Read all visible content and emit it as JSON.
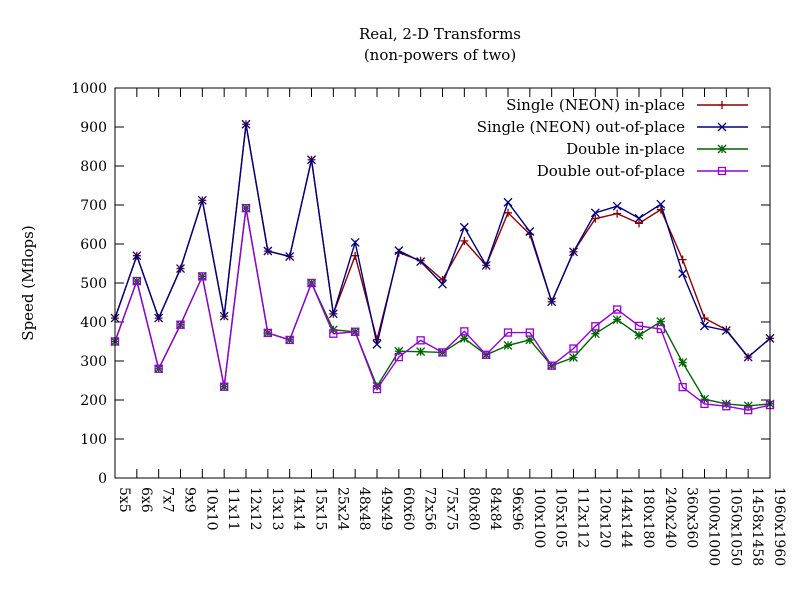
{
  "chart_data": {
    "type": "line",
    "title": "Real, 2-D Transforms",
    "subtitle": "(non-powers of two)",
    "xlabel": "",
    "ylabel": "Speed (Mflops)",
    "ylim": [
      0,
      1000
    ],
    "yticks": [
      0,
      100,
      200,
      300,
      400,
      500,
      600,
      700,
      800,
      900,
      1000
    ],
    "grid": false,
    "legend_position": "top-right",
    "categories": [
      "5x5",
      "6x6",
      "7x7",
      "9x9",
      "10x10",
      "11x11",
      "12x12",
      "13x13",
      "14x14",
      "15x15",
      "25x24",
      "48x48",
      "49x49",
      "60x60",
      "72x56",
      "75x75",
      "80x80",
      "84x84",
      "96x96",
      "100x100",
      "105x105",
      "112x112",
      "120x120",
      "144x144",
      "180x180",
      "240x240",
      "360x360",
      "1000x1000",
      "1050x1050",
      "1458x1458",
      "1960x1960"
    ],
    "series": [
      {
        "name": "Single (NEON) in-place",
        "color": "#8b0000",
        "marker": "plus",
        "values": [
          410,
          570,
          410,
          537,
          712,
          415,
          907,
          582,
          568,
          816,
          421,
          570,
          355,
          578,
          557,
          508,
          608,
          545,
          680,
          625,
          452,
          580,
          665,
          678,
          653,
          688,
          560,
          410,
          380,
          310,
          358
        ]
      },
      {
        "name": "Single (NEON) out-of-place",
        "color": "#00007f",
        "marker": "cross",
        "values": [
          410,
          570,
          410,
          537,
          712,
          415,
          907,
          582,
          568,
          816,
          421,
          604,
          343,
          583,
          555,
          497,
          643,
          545,
          707,
          632,
          452,
          580,
          680,
          697,
          666,
          702,
          524,
          390,
          378,
          310,
          358
        ]
      },
      {
        "name": "Double in-place",
        "color": "#006400",
        "marker": "star",
        "values": [
          350,
          505,
          280,
          393,
          517,
          234,
          692,
          372,
          354,
          500,
          380,
          375,
          235,
          325,
          324,
          322,
          358,
          316,
          340,
          354,
          288,
          309,
          370,
          406,
          366,
          401,
          296,
          202,
          190,
          185,
          190
        ]
      },
      {
        "name": "Double out-of-place",
        "color": "#9400d3",
        "marker": "square",
        "values": [
          350,
          505,
          280,
          393,
          517,
          234,
          692,
          372,
          354,
          500,
          370,
          375,
          228,
          310,
          353,
          322,
          376,
          316,
          373,
          373,
          288,
          332,
          389,
          432,
          390,
          382,
          233,
          190,
          184,
          174,
          187
        ]
      }
    ]
  }
}
